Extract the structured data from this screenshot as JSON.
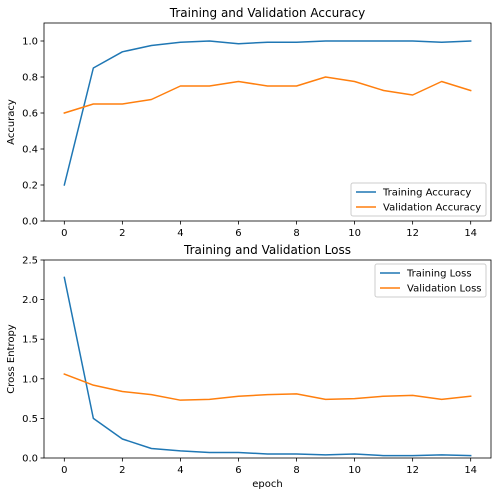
{
  "colors": {
    "series_0": "#1f77b4",
    "series_1": "#ff7f0e"
  },
  "chart_data": [
    {
      "type": "line",
      "title": "Training and Validation Accuracy",
      "xlabel": "",
      "ylabel": "Accuracy",
      "xlim": [
        -0.7,
        14.7
      ],
      "ylim": [
        0,
        1.1
      ],
      "xticks": [
        0,
        2,
        4,
        6,
        8,
        10,
        12,
        14
      ],
      "xtick_labels": [
        "0",
        "2",
        "4",
        "6",
        "8",
        "10",
        "12",
        "14"
      ],
      "yticks": [
        0,
        0.2,
        0.4,
        0.6,
        0.8,
        1.0
      ],
      "ytick_labels": [
        "0.0",
        "0.2",
        "0.4",
        "0.6",
        "0.8",
        "1.0"
      ],
      "grid": false,
      "legend_position": "lower-right",
      "x": [
        0,
        1,
        2,
        3,
        4,
        5,
        6,
        7,
        8,
        9,
        10,
        11,
        12,
        13,
        14
      ],
      "series": [
        {
          "name": "Training Accuracy",
          "color": "#1f77b4",
          "values": [
            0.2,
            0.85,
            0.94,
            0.975,
            0.993,
            1.0,
            0.985,
            0.993,
            0.993,
            1.0,
            1.0,
            1.0,
            1.0,
            0.993,
            1.0
          ]
        },
        {
          "name": "Validation Accuracy",
          "color": "#ff7f0e",
          "values": [
            0.6,
            0.65,
            0.65,
            0.675,
            0.75,
            0.75,
            0.775,
            0.75,
            0.75,
            0.8,
            0.775,
            0.725,
            0.7,
            0.775,
            0.725
          ]
        }
      ]
    },
    {
      "type": "line",
      "title": "Training and Validation Loss",
      "xlabel": "epoch",
      "ylabel": "Cross Entropy",
      "xlim": [
        -0.7,
        14.7
      ],
      "ylim": [
        0,
        2.5
      ],
      "xticks": [
        0,
        2,
        4,
        6,
        8,
        10,
        12,
        14
      ],
      "xtick_labels": [
        "0",
        "2",
        "4",
        "6",
        "8",
        "10",
        "12",
        "14"
      ],
      "yticks": [
        0,
        0.5,
        1.0,
        1.5,
        2.0,
        2.5
      ],
      "ytick_labels": [
        "0.0",
        "0.5",
        "1.0",
        "1.5",
        "2.0",
        "2.5"
      ],
      "grid": false,
      "legend_position": "upper-right",
      "x": [
        0,
        1,
        2,
        3,
        4,
        5,
        6,
        7,
        8,
        9,
        10,
        11,
        12,
        13,
        14
      ],
      "series": [
        {
          "name": "Training Loss",
          "color": "#1f77b4",
          "values": [
            2.28,
            0.5,
            0.24,
            0.12,
            0.09,
            0.07,
            0.07,
            0.05,
            0.05,
            0.04,
            0.05,
            0.03,
            0.03,
            0.04,
            0.03
          ]
        },
        {
          "name": "Validation Loss",
          "color": "#ff7f0e",
          "values": [
            1.06,
            0.92,
            0.84,
            0.8,
            0.73,
            0.74,
            0.78,
            0.8,
            0.81,
            0.74,
            0.75,
            0.78,
            0.79,
            0.74,
            0.78
          ]
        }
      ]
    }
  ]
}
